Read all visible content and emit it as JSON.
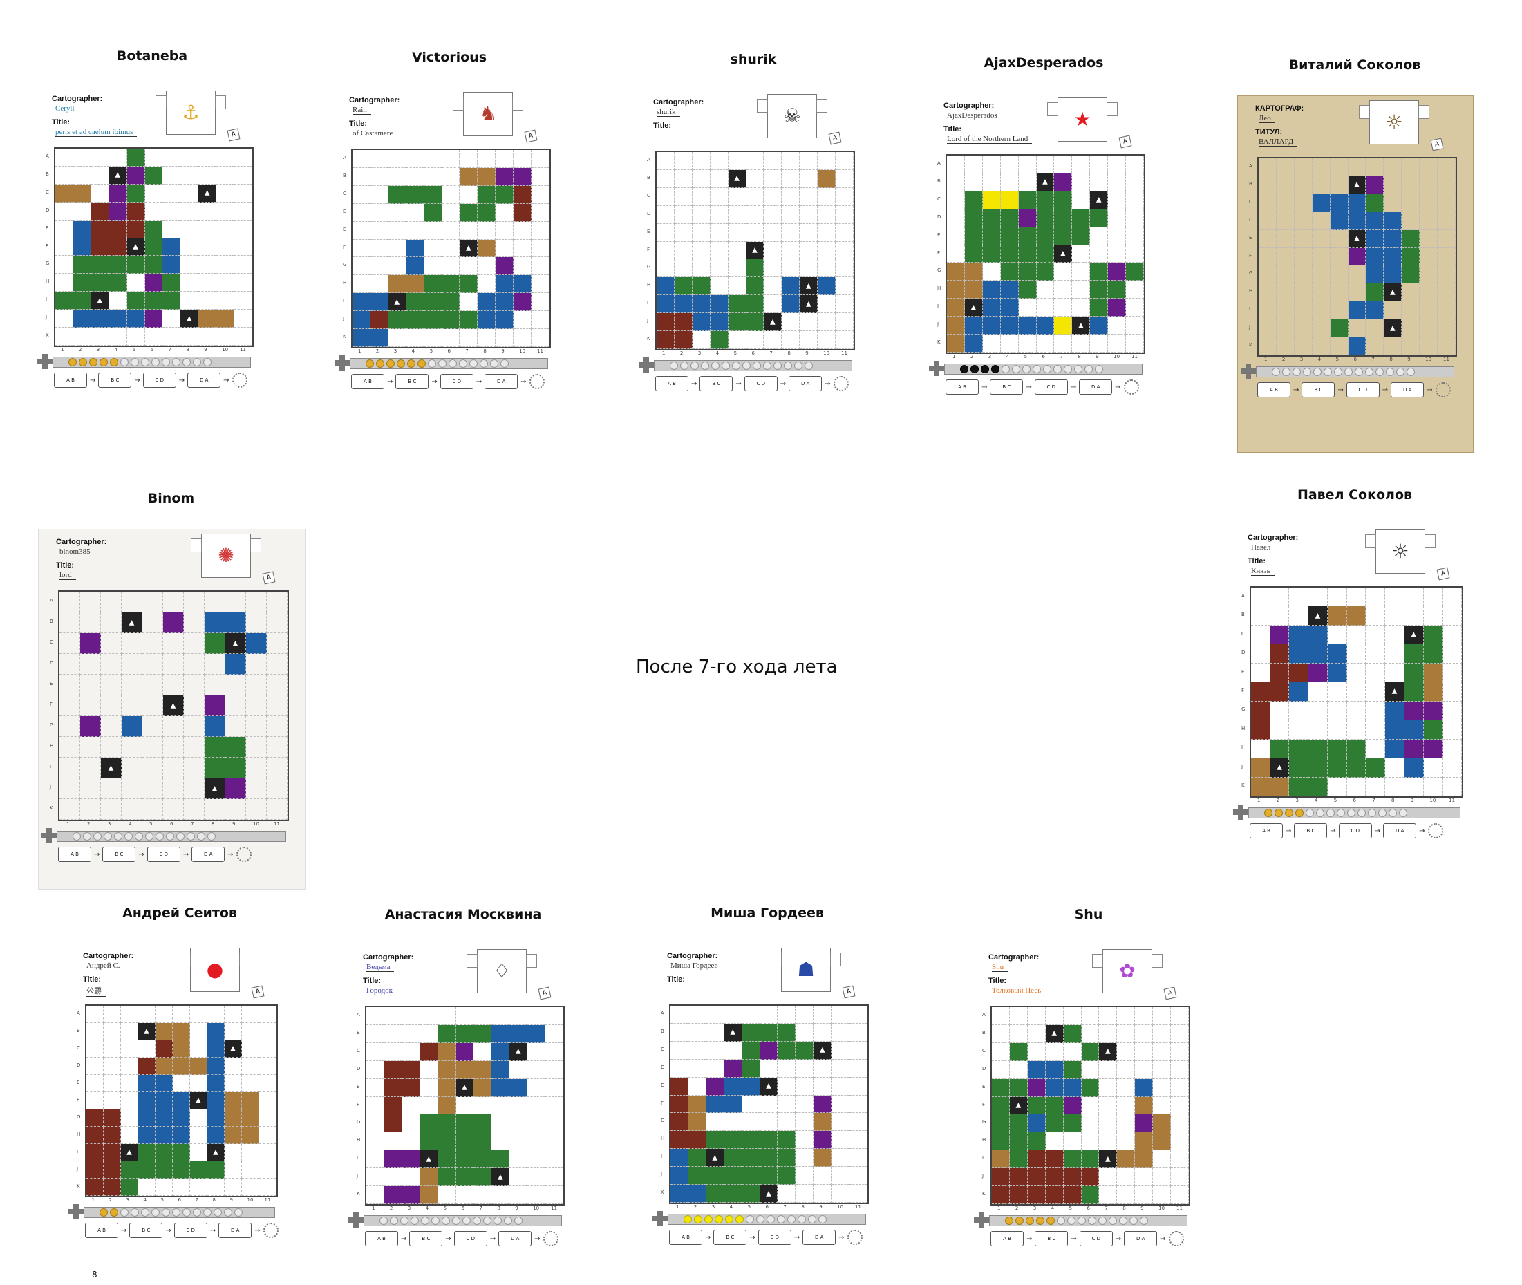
{
  "caption": "После 7-го хода лета",
  "page_number": "8",
  "labels": {
    "cartographer": "Cartographer:",
    "title": "Title:",
    "cartographer_ru": "КАРТОГРАФ:",
    "title_ru": "ТИТУЛ:"
  },
  "row_letters": [
    "A",
    "B",
    "C",
    "D",
    "E",
    "F",
    "G",
    "H",
    "I",
    "J",
    "K"
  ],
  "col_numbers": [
    "1",
    "2",
    "3",
    "4",
    "5",
    "6",
    "7",
    "8",
    "9",
    "10",
    "11"
  ],
  "players": [
    {
      "name": "Botaneba",
      "cartographer": "Ceryll",
      "title": "peris et ad caelum ibimus",
      "emblem": "⚓",
      "emblem_color": "#e2a21a",
      "coins": 5,
      "coin_style": "gold"
    },
    {
      "name": "Victorious",
      "cartographer": "Rain",
      "title": "of Castamere",
      "emblem": "♞",
      "emblem_color": "#b33a2a",
      "coins": 6,
      "coin_style": "gold"
    },
    {
      "name": "shurik",
      "cartographer": "shurik",
      "title": "",
      "emblem": "☠",
      "emblem_color": "#222",
      "coins": 0,
      "coin_style": "gold"
    },
    {
      "name": "AjaxDesperados",
      "cartographer": "AjaxDesperados",
      "title": "Lord of the Northern Land",
      "emblem": "★",
      "emblem_color": "#e21b23",
      "coins": 4,
      "coin_style": "black"
    },
    {
      "name": "Виталий Соколов",
      "cartographer": "Лео",
      "title": "ВАЛЛАРД",
      "emblem": "☼",
      "emblem_color": "#7a5a2a",
      "coins": 0,
      "coin_style": "gold"
    },
    {
      "name": "Binom",
      "cartographer": "binom385",
      "title": "lord",
      "emblem": "✺",
      "emblem_color": "#d43b3b",
      "coins": 0,
      "coin_style": "gold"
    },
    {
      "name": "Павел Соколов",
      "cartographer": "Павел",
      "title": "Князь",
      "emblem": "☼",
      "emblem_color": "#333",
      "coins": 4,
      "coin_style": "gold"
    },
    {
      "name": "Андрей Сеитов",
      "cartographer": "Андрей С.",
      "title": "公爵",
      "emblem": "●",
      "emblem_color": "#e21b23",
      "coins": 2,
      "coin_style": "gold"
    },
    {
      "name": "Анастасия Москвина",
      "cartographer": "Ведьма",
      "title": "Городок",
      "emblem": "♢",
      "emblem_color": "#333",
      "coins": 0,
      "coin_style": "gold"
    },
    {
      "name": "Миша Гордеев",
      "cartographer": "Миша Гордеев",
      "title": "",
      "emblem": "☗",
      "emblem_color": "#2a4aa8",
      "coins": 6,
      "coin_style": "yellow"
    },
    {
      "name": "Shu",
      "cartographer": "Shu",
      "title": "Толковый Песь",
      "emblem": "✿",
      "emblem_color": "#b04ad4",
      "coins": 5,
      "coin_style": "gold"
    }
  ],
  "colors": {
    "forest": "#2e7d32",
    "water": "#1f5fa6",
    "village": "#7b2a1e",
    "farm": "#a97a3a",
    "monster": "#6a1b8a",
    "mountain": "#222222",
    "ruins": "#9e9e9e"
  }
}
